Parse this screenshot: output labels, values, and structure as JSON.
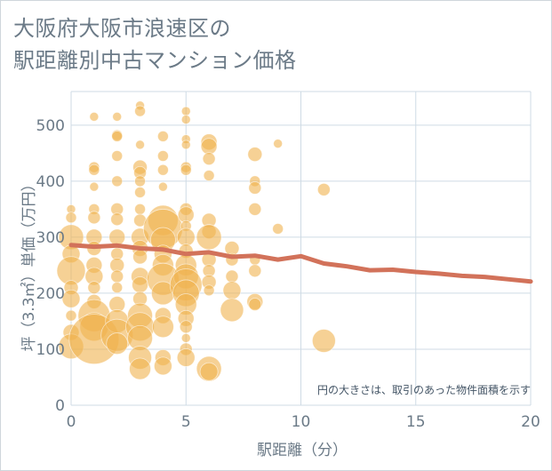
{
  "title_lines": [
    "大阪府大阪市浪速区の",
    "駅距離別中古マンション価格"
  ],
  "note": "円の大きさは、取引のあった物件面積を示す",
  "colors": {
    "bubble": "#f0b24f",
    "line": "#d2725a",
    "grid": "#cfdbe5",
    "text": "#6b7a87"
  },
  "chart_data": {
    "type": "scatter",
    "title": "大阪府大阪市浪速区の駅距離別中古マンション価格",
    "xlabel": "駅距離（分）",
    "ylabel": "坪（3.3㎡）単価（万円）",
    "xlim": [
      0,
      20
    ],
    "ylim": [
      0,
      560
    ],
    "xticks": [
      0,
      5,
      10,
      15,
      20
    ],
    "yticks": [
      0,
      100,
      200,
      300,
      400,
      500
    ],
    "grid": true,
    "bubbles": [
      {
        "x": 0,
        "y": 350,
        "s": 5
      },
      {
        "x": 0,
        "y": 335,
        "s": 6
      },
      {
        "x": 0,
        "y": 300,
        "s": 14
      },
      {
        "x": 0,
        "y": 270,
        "s": 10
      },
      {
        "x": 0,
        "y": 240,
        "s": 16
      },
      {
        "x": 0,
        "y": 210,
        "s": 8
      },
      {
        "x": 0,
        "y": 190,
        "s": 10
      },
      {
        "x": 0,
        "y": 160,
        "s": 6
      },
      {
        "x": 0,
        "y": 130,
        "s": 9
      },
      {
        "x": 0,
        "y": 105,
        "s": 14
      },
      {
        "x": 1,
        "y": 515,
        "s": 5
      },
      {
        "x": 1,
        "y": 425,
        "s": 6
      },
      {
        "x": 1,
        "y": 420,
        "s": 6
      },
      {
        "x": 1,
        "y": 390,
        "s": 5
      },
      {
        "x": 1,
        "y": 350,
        "s": 6
      },
      {
        "x": 1,
        "y": 335,
        "s": 7
      },
      {
        "x": 1,
        "y": 300,
        "s": 9
      },
      {
        "x": 1,
        "y": 280,
        "s": 8
      },
      {
        "x": 1,
        "y": 250,
        "s": 9
      },
      {
        "x": 1,
        "y": 230,
        "s": 10
      },
      {
        "x": 1,
        "y": 210,
        "s": 7
      },
      {
        "x": 1,
        "y": 185,
        "s": 8
      },
      {
        "x": 1,
        "y": 160,
        "s": 18
      },
      {
        "x": 1,
        "y": 140,
        "s": 16
      },
      {
        "x": 1,
        "y": 118,
        "s": 28
      },
      {
        "x": 2,
        "y": 515,
        "s": 5
      },
      {
        "x": 2,
        "y": 482,
        "s": 6
      },
      {
        "x": 2,
        "y": 480,
        "s": 6
      },
      {
        "x": 2,
        "y": 445,
        "s": 6
      },
      {
        "x": 2,
        "y": 400,
        "s": 6
      },
      {
        "x": 2,
        "y": 350,
        "s": 7
      },
      {
        "x": 2,
        "y": 332,
        "s": 7
      },
      {
        "x": 2,
        "y": 300,
        "s": 9
      },
      {
        "x": 2,
        "y": 270,
        "s": 7
      },
      {
        "x": 2,
        "y": 250,
        "s": 8
      },
      {
        "x": 2,
        "y": 230,
        "s": 7
      },
      {
        "x": 2,
        "y": 210,
        "s": 6
      },
      {
        "x": 2,
        "y": 180,
        "s": 9
      },
      {
        "x": 2,
        "y": 150,
        "s": 13
      },
      {
        "x": 2,
        "y": 125,
        "s": 18
      },
      {
        "x": 2,
        "y": 110,
        "s": 12
      },
      {
        "x": 3,
        "y": 535,
        "s": 5
      },
      {
        "x": 3,
        "y": 525,
        "s": 6
      },
      {
        "x": 3,
        "y": 465,
        "s": 5
      },
      {
        "x": 3,
        "y": 425,
        "s": 8
      },
      {
        "x": 3,
        "y": 415,
        "s": 7
      },
      {
        "x": 3,
        "y": 400,
        "s": 6
      },
      {
        "x": 3,
        "y": 380,
        "s": 6
      },
      {
        "x": 3,
        "y": 350,
        "s": 6
      },
      {
        "x": 3,
        "y": 330,
        "s": 7
      },
      {
        "x": 3,
        "y": 300,
        "s": 10
      },
      {
        "x": 3,
        "y": 280,
        "s": 9
      },
      {
        "x": 3,
        "y": 265,
        "s": 8
      },
      {
        "x": 3,
        "y": 230,
        "s": 10
      },
      {
        "x": 3,
        "y": 215,
        "s": 9
      },
      {
        "x": 3,
        "y": 190,
        "s": 8
      },
      {
        "x": 3,
        "y": 160,
        "s": 14
      },
      {
        "x": 3,
        "y": 140,
        "s": 16
      },
      {
        "x": 3,
        "y": 120,
        "s": 14
      },
      {
        "x": 3,
        "y": 85,
        "s": 13
      },
      {
        "x": 3,
        "y": 65,
        "s": 12
      },
      {
        "x": 4,
        "y": 480,
        "s": 6
      },
      {
        "x": 4,
        "y": 445,
        "s": 6
      },
      {
        "x": 4,
        "y": 420,
        "s": 6
      },
      {
        "x": 4,
        "y": 390,
        "s": 5
      },
      {
        "x": 4,
        "y": 330,
        "s": 17
      },
      {
        "x": 4,
        "y": 315,
        "s": 22
      },
      {
        "x": 4,
        "y": 295,
        "s": 14
      },
      {
        "x": 4,
        "y": 270,
        "s": 10
      },
      {
        "x": 4,
        "y": 250,
        "s": 12
      },
      {
        "x": 4,
        "y": 225,
        "s": 18
      },
      {
        "x": 4,
        "y": 200,
        "s": 13
      },
      {
        "x": 4,
        "y": 160,
        "s": 9
      },
      {
        "x": 4,
        "y": 140,
        "s": 12
      },
      {
        "x": 4,
        "y": 85,
        "s": 9
      },
      {
        "x": 4,
        "y": 70,
        "s": 10
      },
      {
        "x": 5,
        "y": 525,
        "s": 5
      },
      {
        "x": 5,
        "y": 510,
        "s": 5
      },
      {
        "x": 5,
        "y": 475,
        "s": 5
      },
      {
        "x": 5,
        "y": 465,
        "s": 5
      },
      {
        "x": 5,
        "y": 425,
        "s": 6
      },
      {
        "x": 5,
        "y": 420,
        "s": 6
      },
      {
        "x": 5,
        "y": 350,
        "s": 7
      },
      {
        "x": 5,
        "y": 340,
        "s": 9
      },
      {
        "x": 5,
        "y": 320,
        "s": 6
      },
      {
        "x": 5,
        "y": 300,
        "s": 10
      },
      {
        "x": 5,
        "y": 275,
        "s": 8
      },
      {
        "x": 5,
        "y": 250,
        "s": 12
      },
      {
        "x": 5,
        "y": 230,
        "s": 14
      },
      {
        "x": 5,
        "y": 215,
        "s": 18
      },
      {
        "x": 5,
        "y": 200,
        "s": 15
      },
      {
        "x": 5,
        "y": 180,
        "s": 12
      },
      {
        "x": 5,
        "y": 155,
        "s": 9
      },
      {
        "x": 5,
        "y": 140,
        "s": 7
      },
      {
        "x": 5,
        "y": 120,
        "s": 5
      },
      {
        "x": 5,
        "y": 100,
        "s": 7
      },
      {
        "x": 5,
        "y": 85,
        "s": 10
      },
      {
        "x": 6,
        "y": 470,
        "s": 9
      },
      {
        "x": 6,
        "y": 462,
        "s": 9
      },
      {
        "x": 6,
        "y": 440,
        "s": 7
      },
      {
        "x": 6,
        "y": 410,
        "s": 6
      },
      {
        "x": 6,
        "y": 330,
        "s": 8
      },
      {
        "x": 6,
        "y": 310,
        "s": 8
      },
      {
        "x": 6,
        "y": 300,
        "s": 14
      },
      {
        "x": 6,
        "y": 260,
        "s": 8
      },
      {
        "x": 6,
        "y": 240,
        "s": 7
      },
      {
        "x": 6,
        "y": 220,
        "s": 8
      },
      {
        "x": 6,
        "y": 205,
        "s": 6
      },
      {
        "x": 6,
        "y": 65,
        "s": 14
      },
      {
        "x": 6,
        "y": 60,
        "s": 10
      },
      {
        "x": 7,
        "y": 280,
        "s": 8
      },
      {
        "x": 7,
        "y": 260,
        "s": 7
      },
      {
        "x": 7,
        "y": 230,
        "s": 7
      },
      {
        "x": 7,
        "y": 205,
        "s": 10
      },
      {
        "x": 7,
        "y": 170,
        "s": 13
      },
      {
        "x": 8,
        "y": 448,
        "s": 8
      },
      {
        "x": 8,
        "y": 400,
        "s": 6
      },
      {
        "x": 8,
        "y": 388,
        "s": 7
      },
      {
        "x": 8,
        "y": 350,
        "s": 7
      },
      {
        "x": 8,
        "y": 260,
        "s": 6
      },
      {
        "x": 8,
        "y": 240,
        "s": 7
      },
      {
        "x": 8,
        "y": 185,
        "s": 9
      },
      {
        "x": 8,
        "y": 180,
        "s": 7
      },
      {
        "x": 9,
        "y": 467,
        "s": 5
      },
      {
        "x": 9,
        "y": 315,
        "s": 6
      },
      {
        "x": 11,
        "y": 385,
        "s": 7
      },
      {
        "x": 11,
        "y": 115,
        "s": 13
      }
    ],
    "series": [
      {
        "x": [
          0,
          1,
          2,
          3,
          4,
          5,
          6,
          7,
          8,
          9,
          10,
          11,
          12,
          13,
          14,
          15,
          16,
          17,
          18,
          19,
          20
        ],
        "values": [
          286,
          283,
          285,
          280,
          278,
          270,
          273,
          265,
          267,
          260,
          266,
          253,
          248,
          241,
          242,
          238,
          235,
          231,
          229,
          225,
          221
        ]
      }
    ]
  }
}
